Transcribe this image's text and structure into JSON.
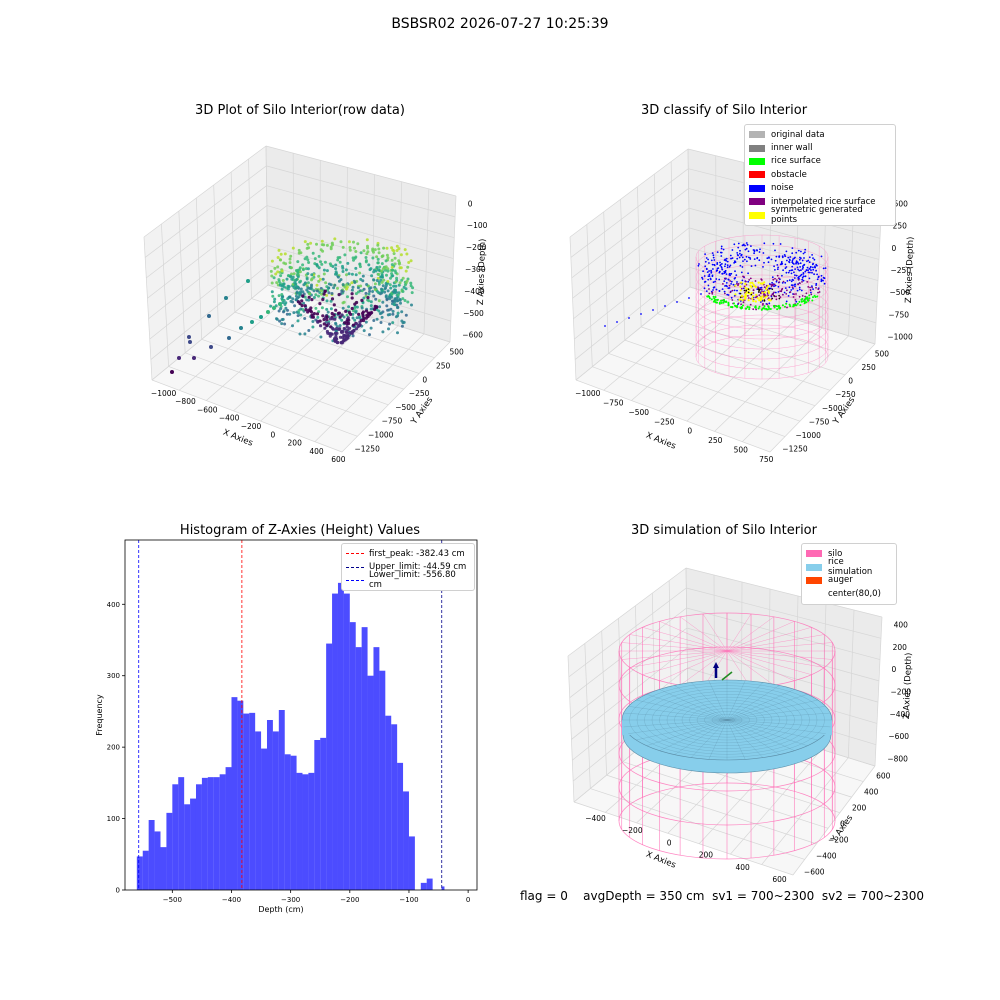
{
  "suptitle": "BSBSR02 2026-07-27 10:25:39",
  "status": {
    "flag": "flag = 0",
    "avg_depth": "avgDepth = 350 cm",
    "sv1": "sv1 = 700~2300",
    "sv2": "sv2 = 700~2300"
  },
  "chart_data": [
    {
      "type": "scatter",
      "subtype": "3d",
      "title": "3D Plot of Silo Interior(row data)",
      "xlabel": "X Axies",
      "ylabel": "Y Axies",
      "zlabel": "Z Axies (Depth)",
      "x_ticks": [
        "−1000",
        "−800",
        "−600",
        "−400",
        "−200",
        "0",
        "200",
        "400",
        "600"
      ],
      "y_ticks": [
        "500",
        "250",
        "0",
        "−250",
        "−500",
        "−750",
        "−1000",
        "−1250"
      ],
      "z_ticks": [
        "0",
        "−100",
        "−200",
        "−300",
        "−400",
        "−500",
        "−600"
      ],
      "colormap": "viridis",
      "grid": true
    },
    {
      "type": "scatter",
      "subtype": "3d",
      "title": "3D classify of Silo Interior",
      "xlabel": "X Axies",
      "ylabel": "Y Axies",
      "zlabel": "Z Axies (Depth)",
      "x_ticks": [
        "−1000",
        "−750",
        "−500",
        "−250",
        "0",
        "250",
        "500",
        "750"
      ],
      "y_ticks": [
        "500",
        "250",
        "0",
        "−250",
        "−500",
        "−750",
        "−1000",
        "−1250"
      ],
      "z_ticks": [
        "500",
        "250",
        "0",
        "−250",
        "−500",
        "−750",
        "−1000"
      ],
      "legend": [
        {
          "label": "original data",
          "color": "#b3b3b3"
        },
        {
          "label": "inner wall",
          "color": "#808080"
        },
        {
          "label": "rice surface",
          "color": "#00ff00"
        },
        {
          "label": "obstacle",
          "color": "#ff0000"
        },
        {
          "label": "noise",
          "color": "#0000ff"
        },
        {
          "label": "interpolated rice surface",
          "color": "#800080"
        },
        {
          "label": "symmetric generated points",
          "color": "#ffff00"
        }
      ],
      "legend_position": "top-right",
      "grid": true
    },
    {
      "type": "bar",
      "subtype": "histogram",
      "title": "Histogram of Z-Axies (Height) Values",
      "xlabel": "Depth (cm)",
      "ylabel": "Frequency",
      "xlim": [
        -580,
        15
      ],
      "ylim": [
        0,
        490
      ],
      "x_ticks": [
        -500,
        -400,
        -300,
        -200,
        -100,
        0
      ],
      "x_tick_labels": [
        "−500",
        "−400",
        "−300",
        "−200",
        "−100",
        "0"
      ],
      "y_ticks": [
        0,
        100,
        200,
        300,
        400
      ],
      "color": "#0000ff",
      "bin_start": -560,
      "bin_width": 10,
      "values": [
        47,
        55,
        98,
        82,
        60,
        108,
        148,
        158,
        120,
        128,
        148,
        157,
        158,
        158,
        162,
        172,
        270,
        265,
        247,
        248,
        222,
        198,
        238,
        222,
        252,
        190,
        188,
        164,
        162,
        164,
        210,
        213,
        345,
        415,
        430,
        415,
        375,
        340,
        368,
        300,
        340,
        307,
        244,
        232,
        178,
        138,
        75,
        0,
        10,
        16
      ],
      "tail_values": [
        {
          "x": -45,
          "w": 5,
          "v": 5
        }
      ],
      "vlines": [
        {
          "x": -382.43,
          "color": "#ff0000",
          "label": "first_peak: -382.43 cm"
        },
        {
          "x": -44.59,
          "color": "#00008b",
          "label": "Upper_limit: -44.59 cm"
        },
        {
          "x": -556.8,
          "color": "#0000ff",
          "label": "Lower_limit: -556.80 cm"
        }
      ],
      "legend_position": "top-right",
      "grid": false
    },
    {
      "type": "surface",
      "subtype": "3d",
      "title": "3D simulation of Silo Interior",
      "xlabel": "X Axies",
      "ylabel": "Y Axies",
      "zlabel": "Z Axies (Depth)",
      "x_ticks": [
        "−400",
        "−200",
        "0",
        "200",
        "400",
        "600"
      ],
      "y_ticks": [
        "600",
        "400",
        "200",
        "0",
        "−200",
        "−400",
        "−600"
      ],
      "z_ticks": [
        "400",
        "200",
        "0",
        "−200",
        "−400",
        "−600",
        "−800"
      ],
      "legend": [
        {
          "label": "silo",
          "color": "#ff69b4"
        },
        {
          "label": "rice simulation",
          "color": "#87ceeb"
        },
        {
          "label": "auger",
          "color": "#ff4500"
        },
        {
          "label": "center(80,0)",
          "color": "#ffffff"
        }
      ],
      "legend_position": "top-right",
      "grid": true
    }
  ]
}
